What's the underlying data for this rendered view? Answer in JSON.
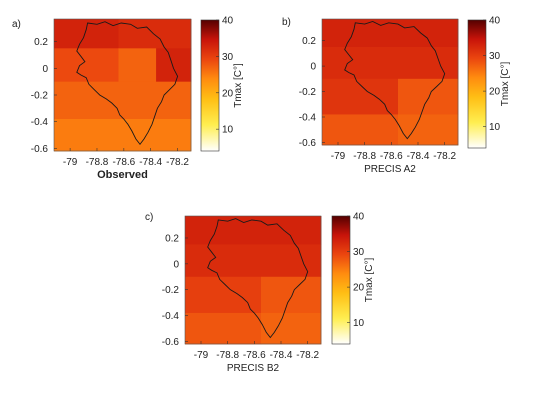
{
  "chart_data": [
    {
      "type": "heatmap",
      "panel_label": "a)",
      "xlabel": "Observed",
      "colorbar_label": "Tmax [C°]",
      "x_ticks": [
        -79,
        -78.8,
        -78.6,
        -78.4,
        -78.2
      ],
      "x_tick_labels": [
        "-79",
        "-78.8",
        "-78.6",
        "-78.4",
        "-78.2"
      ],
      "y_ticks": [
        0.2,
        0,
        -0.2,
        -0.4,
        -0.6
      ],
      "y_tick_labels": [
        "0.2",
        "0",
        "-0.2",
        "-0.4",
        "-0.6"
      ],
      "xlim": [
        -79.12,
        -78.1
      ],
      "ylim": [
        -0.62,
        0.37
      ],
      "colorbar_ticks": [
        10,
        20,
        30,
        40
      ],
      "colorbar_tick_labels": [
        "10",
        "20",
        "30",
        "40"
      ],
      "colorbar_range": [
        4,
        40
      ],
      "cells": [
        {
          "x0": -79.12,
          "x1": -78.64,
          "y0": 0.15,
          "y1": 0.37,
          "value": 33
        },
        {
          "x0": -78.64,
          "x1": -78.1,
          "y0": 0.15,
          "y1": 0.37,
          "value": 32
        },
        {
          "x0": -79.12,
          "x1": -78.64,
          "y0": -0.1,
          "y1": 0.15,
          "value": 29
        },
        {
          "x0": -78.64,
          "x1": -78.36,
          "y0": -0.1,
          "y1": 0.15,
          "value": 27
        },
        {
          "x0": -78.36,
          "x1": -78.1,
          "y0": -0.1,
          "y1": 0.15,
          "value": 33
        },
        {
          "x0": -79.12,
          "x1": -78.1,
          "y0": -0.38,
          "y1": -0.1,
          "value": 27
        },
        {
          "x0": -79.12,
          "x1": -78.1,
          "y0": -0.62,
          "y1": -0.38,
          "value": 25
        }
      ]
    },
    {
      "type": "heatmap",
      "panel_label": "b)",
      "xlabel": "PRECIS A2",
      "colorbar_label": "Tmax [C°]",
      "x_ticks": [
        -79,
        -78.8,
        -78.6,
        -78.4,
        -78.2
      ],
      "x_tick_labels": [
        "-79",
        "-78.8",
        "-78.6",
        "-78.4",
        "-78.2"
      ],
      "y_ticks": [
        0.2,
        0,
        -0.2,
        -0.4,
        -0.6
      ],
      "y_tick_labels": [
        "0.2",
        "0",
        "-0.2",
        "-0.4",
        "-0.6"
      ],
      "xlim": [
        -79.12,
        -78.1
      ],
      "ylim": [
        -0.62,
        0.37
      ],
      "colorbar_ticks": [
        10,
        20,
        30,
        40
      ],
      "colorbar_tick_labels": [
        "10",
        "20",
        "30",
        "40"
      ],
      "colorbar_range": [
        4,
        40
      ],
      "cells": [
        {
          "x0": -79.12,
          "x1": -78.1,
          "y0": 0.15,
          "y1": 0.37,
          "value": 33
        },
        {
          "x0": -79.12,
          "x1": -78.1,
          "y0": -0.1,
          "y1": 0.15,
          "value": 32
        },
        {
          "x0": -79.12,
          "x1": -78.55,
          "y0": -0.38,
          "y1": -0.1,
          "value": 31
        },
        {
          "x0": -78.55,
          "x1": -78.1,
          "y0": -0.38,
          "y1": -0.1,
          "value": 28
        },
        {
          "x0": -79.12,
          "x1": -78.55,
          "y0": -0.62,
          "y1": -0.38,
          "value": 28
        },
        {
          "x0": -78.55,
          "x1": -78.1,
          "y0": -0.62,
          "y1": -0.38,
          "value": 27
        }
      ]
    },
    {
      "type": "heatmap",
      "panel_label": "c)",
      "xlabel": "PRECIS B2",
      "colorbar_label": "Tmax [C°]",
      "x_ticks": [
        -79,
        -78.8,
        -78.6,
        -78.4,
        -78.2
      ],
      "x_tick_labels": [
        "-79",
        "-78.8",
        "-78.6",
        "-78.4",
        "-78.2"
      ],
      "y_ticks": [
        0.2,
        0,
        -0.2,
        -0.4,
        -0.6
      ],
      "y_tick_labels": [
        "0.2",
        "0",
        "-0.2",
        "-0.4",
        "-0.6"
      ],
      "xlim": [
        -79.12,
        -78.1
      ],
      "ylim": [
        -0.62,
        0.37
      ],
      "colorbar_ticks": [
        10,
        20,
        30,
        40
      ],
      "colorbar_tick_labels": [
        "10",
        "20",
        "30",
        "40"
      ],
      "colorbar_range": [
        4,
        40
      ],
      "cells": [
        {
          "x0": -79.12,
          "x1": -78.1,
          "y0": 0.15,
          "y1": 0.37,
          "value": 33
        },
        {
          "x0": -79.12,
          "x1": -78.1,
          "y0": -0.1,
          "y1": 0.15,
          "value": 32
        },
        {
          "x0": -79.12,
          "x1": -78.55,
          "y0": -0.38,
          "y1": -0.1,
          "value": 30
        },
        {
          "x0": -78.55,
          "x1": -78.1,
          "y0": -0.38,
          "y1": -0.1,
          "value": 28
        },
        {
          "x0": -79.12,
          "x1": -78.55,
          "y0": -0.62,
          "y1": -0.38,
          "value": 28
        },
        {
          "x0": -78.55,
          "x1": -78.1,
          "y0": -0.62,
          "y1": -0.38,
          "value": 27
        }
      ]
    }
  ]
}
